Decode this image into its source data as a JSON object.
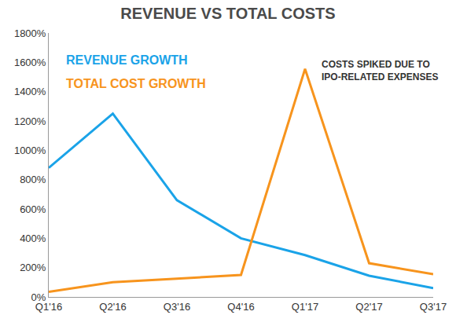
{
  "chart_data": {
    "type": "line",
    "title": "REVENUE VS TOTAL COSTS",
    "categories": [
      "Q1'16",
      "Q2'16",
      "Q3'16",
      "Q4'16",
      "Q1'17",
      "Q2'17",
      "Q3'17"
    ],
    "series": [
      {
        "name": "REVENUE GROWTH",
        "color": "#1aa3e8",
        "values": [
          880,
          1250,
          660,
          400,
          285,
          145,
          60
        ]
      },
      {
        "name": "TOTAL COST GROWTH",
        "color": "#f7941d",
        "values": [
          35,
          100,
          125,
          150,
          1555,
          230,
          155
        ]
      }
    ],
    "ylim": [
      0,
      1800
    ],
    "yticks": [
      {
        "value": 0,
        "label": "0%"
      },
      {
        "value": 200,
        "label": "200%"
      },
      {
        "value": 400,
        "label": "400%"
      },
      {
        "value": 600,
        "label": "600%"
      },
      {
        "value": 800,
        "label": "800%"
      },
      {
        "value": 1000,
        "label": "1000%"
      },
      {
        "value": 1200,
        "label": "1200%"
      },
      {
        "value": 1400,
        "label": "1400%"
      },
      {
        "value": 1600,
        "label": "1600%"
      },
      {
        "value": 1800,
        "label": "1800%"
      }
    ],
    "annotations": [
      {
        "text": "COSTS SPIKED DUE TO\nIPO-RELATED EXPENSES"
      }
    ],
    "grid": false,
    "legend": "upper left"
  }
}
